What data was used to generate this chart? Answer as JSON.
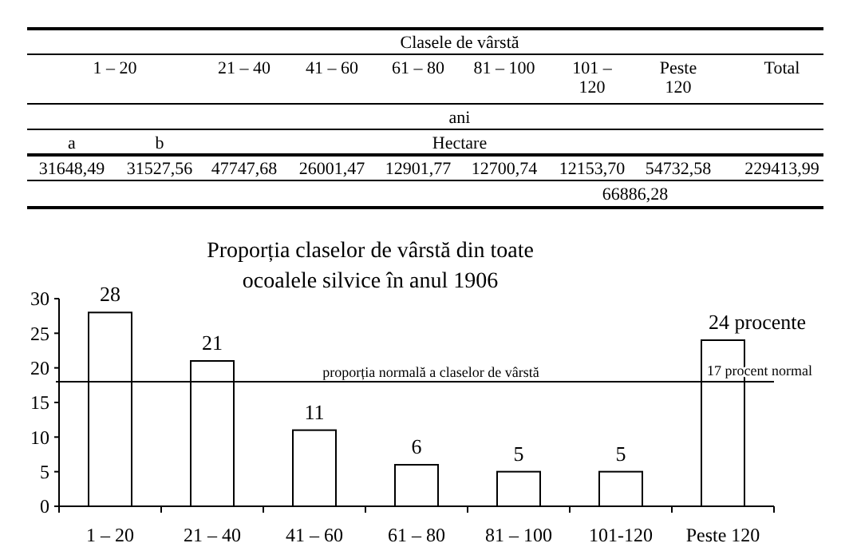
{
  "chart_data": [
    {
      "type": "other",
      "title": "Clasele de vârstă",
      "categories": [
        "1 – 20",
        "21 – 40",
        "41 – 60",
        "61 – 80",
        "81 – 100",
        "101 – 120",
        "Peste 120",
        "Total"
      ],
      "annotations": [
        "ani",
        "a",
        "b",
        "Hectare",
        "31648,49",
        "31527,56",
        "47747,68",
        "26001,47",
        "12901,77",
        "12700,74",
        "12153,70",
        "54732,58",
        "229413,99",
        "66886,28"
      ]
    },
    {
      "type": "bar",
      "title": "Proporția claselor de vârstă din toate ocoalele silvice în anul 1906",
      "categories": [
        "1 – 20",
        "21 – 40",
        "41 – 60",
        "61 – 80",
        "81 – 100",
        "101-120",
        "Peste 120"
      ],
      "values": [
        28,
        21,
        11,
        6,
        5,
        5,
        24
      ],
      "value_labels": [
        "28",
        "21",
        "11",
        "6",
        "5",
        "5",
        "24  procente"
      ],
      "color": "#ffffff",
      "ylim": [
        0,
        30
      ],
      "yticks": [
        0,
        5,
        10,
        15,
        20,
        25,
        30
      ],
      "grid": false,
      "ref_lines": [
        {
          "axis": "y",
          "value": 18,
          "label": "proporția normală a claselor de vârstă"
        }
      ],
      "annotations": [
        {
          "text": "17 procent normal",
          "x": "Peste 120",
          "y": 18
        }
      ]
    }
  ]
}
